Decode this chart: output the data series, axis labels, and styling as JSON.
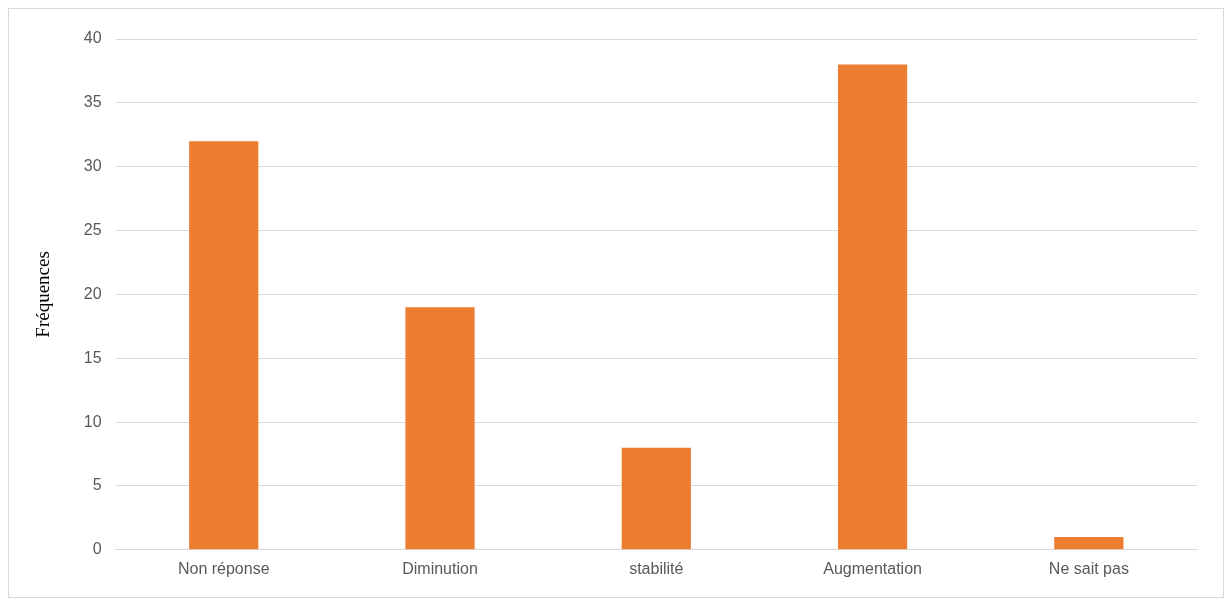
{
  "chart_data": {
    "type": "bar",
    "ylabel": "Fréquences",
    "categories": [
      "Non réponse",
      "Diminution",
      "stabilité",
      "Augmentation",
      "Ne sait pas"
    ],
    "values": [
      32,
      19,
      8,
      38,
      1
    ],
    "color": "#ed7d31",
    "ylim": [
      0,
      40
    ],
    "yticks": [
      0,
      5,
      10,
      15,
      20,
      25,
      30,
      35,
      40
    ],
    "grid": "y",
    "legend": false
  }
}
